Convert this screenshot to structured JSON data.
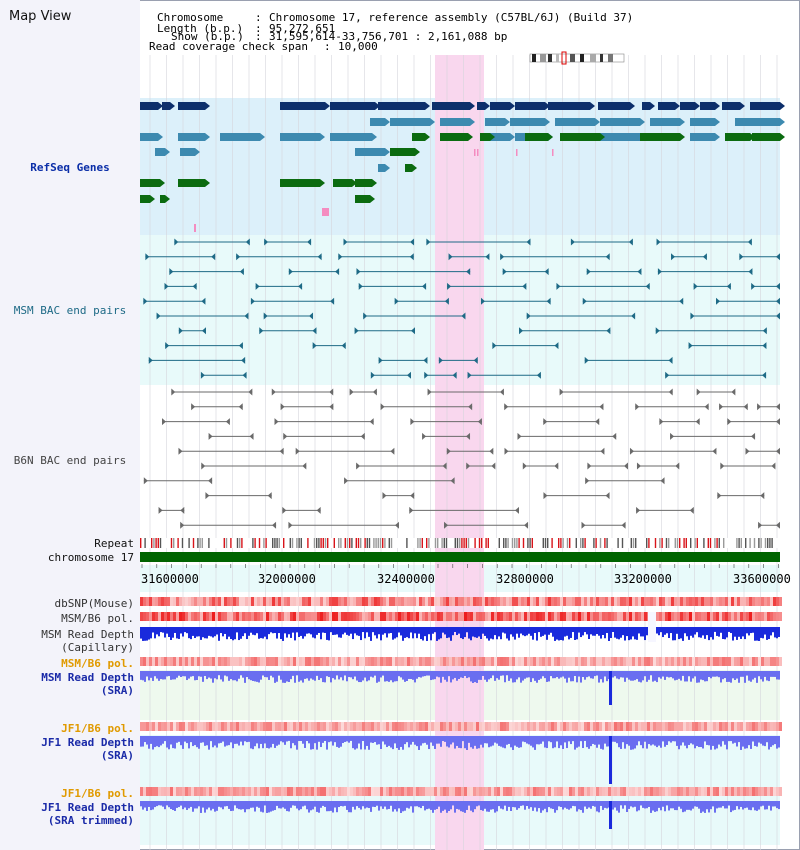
{
  "app": {
    "title": "Map View"
  },
  "header": {
    "chromosome_key": "Chromosome",
    "chromosome_val": "Chromosome 17, reference assembly (C57BL/6J) (Build 37)",
    "length_key": "Length (b.p.)",
    "length_val": "95,272,651",
    "show_key": "Show (b.p.)",
    "show_val": "31,595,614-33,756,701 : 2,161,088 bp",
    "coverage_key": "Read coverage check span",
    "coverage_val": "10,000"
  },
  "tracks": {
    "refseq": "RefSeq Genes",
    "msm_bac": "MSM BAC end pairs",
    "b6n_bac": "B6N BAC end pairs",
    "repeat": "Repeat",
    "chromosome": "chromosome 17",
    "dbsnp": "dbSNP(Mouse)",
    "msm_b6_pol": "MSM/B6 pol.",
    "msm_depth_cap": "MSM Read Depth\n(Capillary)",
    "msm_b6_pol2": "MSM/B6 pol.",
    "msm_depth_sra": "MSM Read Depth\n(SRA)",
    "jf1_b6_pol": "JF1/B6 pol.",
    "jf1_depth_sra": "JF1 Read Depth\n(SRA)",
    "jf1_b6_pol2": "JF1/B6 pol.",
    "jf1_depth_trim": "JF1 Read Depth\n(SRA trimmed)"
  },
  "axis": {
    "ticks": [
      "31600000",
      "32000000",
      "32400000",
      "32800000",
      "33200000",
      "33600000"
    ]
  },
  "colors": {
    "highlight": "#f9d7ee",
    "refseq_bg": "#dcf0fa",
    "bac_bg": "#e8fafa",
    "navy_gene": "#0d2f6b",
    "mid_gene": "#3d8ab0",
    "green_gene": "#0b6b10",
    "chromosome_bar": "#006400",
    "depth_blue": "#1a2adc",
    "depth_light": "#6a6ef0"
  }
}
